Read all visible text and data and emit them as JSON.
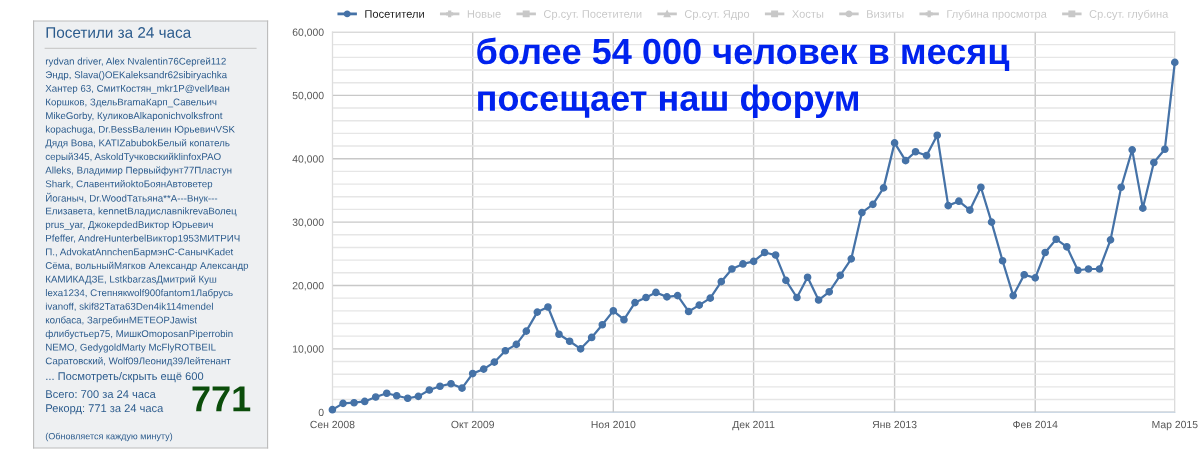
{
  "chart_data": [
    {
      "type": "other",
      "title": "Посетили за 24 часа",
      "annotations": [
        "rydvan driver, Alex Nvalentin76Сергей112",
        "Эндр, Slava()OEKaleksandr62sibiryachka",
        "Хантер 63, СмитКостян_mkr1P@velИван",
        "Коршков, ЗдельBramaКарп_Савельич",
        "MikeGorby, КуликовAlkaponichvolksfront",
        "kopachuga, Dr.BessВаленин ЮрьевичVSK",
        "Дядя Вова, KATIZabubokБелый копатель",
        "серый345, AskoldТучковскийklinfoxPAO",
        "Alleks, Владимир Первыйфунт77Пластун",
        "Shark, СлавентийoktoБоянАвтоветер",
        "Йоганыч, Dr.WoodТатьяна**А---Внук---",
        "Елизавета, kennetВладиславnikrevaВолец",
        "prus_yar, ДжокерdedВиктор Юрьевич",
        "Pfeffer, AndreHunterbelВиктор1953МИТРИЧ",
        "П., AdvokatAnnchenБармэнС-СанычKadet",
        "Сёма, вольныйМягков Александр Александр",
        "КАМИКАДЗЕ, LstkbarzasДмитрий Куш",
        "lexa1234, Степнякwolf900fantom1Лабрусь",
        "ivanoff, skif82Тата63Den4ik114mendel",
        "колбаса, ЗагребинMETEOPJawist",
        "флибустьер75, МишкOmoposanPiperrobin",
        "NEMO, GedygoldMarty McFlyROTBEIL",
        "Саратовский, Wolf09Леонид39Лейтенант",
        "... Посмотреть/скрыть ещё 600",
        "Всего: 700 за 24 часа",
        "Рекорд: 771 за 24 часа",
        "771",
        "(Обновляется каждую минуту)"
      ]
    },
    {
      "type": "line",
      "x": [
        "2008-09",
        "2008-10",
        "2008-11",
        "2008-12",
        "2009-01",
        "2009-02",
        "2009-03",
        "2009-04",
        "2009-05",
        "2009-06",
        "2009-07",
        "2009-08",
        "2009-09",
        "2009-10",
        "2009-11",
        "2009-12",
        "2010-01",
        "2010-02",
        "2010-03",
        "2010-04",
        "2010-05",
        "2010-06",
        "2010-07",
        "2010-08",
        "2010-09",
        "2010-10",
        "2010-11",
        "2010-12",
        "2011-01",
        "2011-02",
        "2011-03",
        "2011-04",
        "2011-05",
        "2011-06",
        "2011-07",
        "2011-08",
        "2011-09",
        "2011-10",
        "2011-11",
        "2011-12",
        "2012-01",
        "2012-02",
        "2012-03",
        "2012-04",
        "2012-05",
        "2012-06",
        "2012-07",
        "2012-08",
        "2012-09",
        "2012-10",
        "2012-11",
        "2012-12",
        "2013-01",
        "2013-02",
        "2013-03",
        "2013-04",
        "2013-05",
        "2013-06",
        "2013-07",
        "2013-08",
        "2013-09",
        "2013-10",
        "2013-11",
        "2013-12",
        "2014-01",
        "2014-02",
        "2014-03",
        "2014-04",
        "2014-05",
        "2014-06",
        "2014-07",
        "2014-08",
        "2014-09",
        "2014-10",
        "2014-11",
        "2014-12",
        "2015-01",
        "2015-02",
        "2015-03"
      ],
      "series": [
        {
          "name": "Посетители",
          "color": "#4572a7",
          "marker": "circle",
          "values": [
            400,
            1400,
            1500,
            1700,
            2400,
            3000,
            2600,
            2200,
            2500,
            3500,
            4100,
            4500,
            3800,
            6100,
            6800,
            7900,
            9700,
            10700,
            12800,
            15800,
            16600,
            12300,
            11200,
            10000,
            11800,
            13800,
            16000,
            14600,
            17300,
            18100,
            18900,
            18200,
            18400,
            15900,
            16900,
            18000,
            20600,
            22600,
            23400,
            23800,
            25200,
            24800,
            20800,
            18100,
            21300,
            17700,
            19000,
            21600,
            24200,
            31500,
            32800,
            35400,
            42500,
            39700,
            41100,
            40500,
            43700,
            32600,
            33300,
            31900,
            35500,
            30000,
            23900,
            18400,
            21700,
            21200,
            25200,
            27300,
            26100,
            22400,
            22600,
            22600,
            27200,
            35500,
            41400,
            32200,
            39400,
            41500,
            55200
          ]
        },
        {
          "name": "Новые",
          "color": "#c8c8c8",
          "marker": "cross",
          "values": [
            null,
            null,
            null,
            null,
            null,
            null,
            null,
            null,
            null,
            null,
            null,
            null,
            null,
            null,
            null,
            null,
            null,
            null,
            null,
            null,
            null,
            null,
            null,
            null,
            null,
            null,
            null,
            null,
            null,
            null,
            null,
            null,
            null,
            null,
            null,
            null,
            null,
            null,
            null,
            null,
            null,
            null,
            null,
            null,
            null,
            null,
            null,
            null,
            null,
            null,
            null,
            null,
            null,
            null,
            null,
            null,
            null,
            null,
            null,
            null,
            null,
            null,
            null,
            null,
            null,
            null,
            null,
            null,
            null,
            null,
            null,
            null,
            null,
            null,
            null,
            null,
            null,
            null,
            null
          ]
        },
        {
          "name": "Ср.сут. Посетители",
          "color": "#c8c8c8",
          "marker": "square",
          "values": [
            null,
            null,
            null,
            null,
            null,
            null,
            null,
            null,
            null,
            null,
            null,
            null,
            null,
            null,
            null,
            null,
            null,
            null,
            null,
            null,
            null,
            null,
            null,
            null,
            null,
            null,
            null,
            null,
            null,
            null,
            null,
            null,
            null,
            null,
            null,
            null,
            null,
            null,
            null,
            null,
            null,
            null,
            null,
            null,
            null,
            null,
            null,
            null,
            null,
            null,
            null,
            null,
            null,
            null,
            null,
            null,
            null,
            null,
            null,
            null,
            null,
            null,
            null,
            null,
            null,
            null,
            null,
            null,
            null,
            null,
            null,
            null,
            null,
            null,
            null,
            null,
            null,
            null,
            null
          ]
        },
        {
          "name": "Ср.сут. Ядро",
          "color": "#c8c8c8",
          "marker": "triangle",
          "values": [
            null,
            null,
            null,
            null,
            null,
            null,
            null,
            null,
            null,
            null,
            null,
            null,
            null,
            null,
            null,
            null,
            null,
            null,
            null,
            null,
            null,
            null,
            null,
            null,
            null,
            null,
            null,
            null,
            null,
            null,
            null,
            null,
            null,
            null,
            null,
            null,
            null,
            null,
            null,
            null,
            null,
            null,
            null,
            null,
            null,
            null,
            null,
            null,
            null,
            null,
            null,
            null,
            null,
            null,
            null,
            null,
            null,
            null,
            null,
            null,
            null,
            null,
            null,
            null,
            null,
            null,
            null,
            null,
            null,
            null,
            null,
            null,
            null,
            null,
            null,
            null,
            null,
            null,
            null
          ]
        },
        {
          "name": "Хосты",
          "color": "#c8c8c8",
          "marker": "square",
          "values": [
            null,
            null,
            null,
            null,
            null,
            null,
            null,
            null,
            null,
            null,
            null,
            null,
            null,
            null,
            null,
            null,
            null,
            null,
            null,
            null,
            null,
            null,
            null,
            null,
            null,
            null,
            null,
            null,
            null,
            null,
            null,
            null,
            null,
            null,
            null,
            null,
            null,
            null,
            null,
            null,
            null,
            null,
            null,
            null,
            null,
            null,
            null,
            null,
            null,
            null,
            null,
            null,
            null,
            null,
            null,
            null,
            null,
            null,
            null,
            null,
            null,
            null,
            null,
            null,
            null,
            null,
            null,
            null,
            null,
            null,
            null,
            null,
            null,
            null,
            null,
            null,
            null,
            null,
            null
          ]
        },
        {
          "name": "Визиты",
          "color": "#c8c8c8",
          "marker": "circle",
          "values": [
            null,
            null,
            null,
            null,
            null,
            null,
            null,
            null,
            null,
            null,
            null,
            null,
            null,
            null,
            null,
            null,
            null,
            null,
            null,
            null,
            null,
            null,
            null,
            null,
            null,
            null,
            null,
            null,
            null,
            null,
            null,
            null,
            null,
            null,
            null,
            null,
            null,
            null,
            null,
            null,
            null,
            null,
            null,
            null,
            null,
            null,
            null,
            null,
            null,
            null,
            null,
            null,
            null,
            null,
            null,
            null,
            null,
            null,
            null,
            null,
            null,
            null,
            null,
            null,
            null,
            null,
            null,
            null,
            null,
            null,
            null,
            null,
            null,
            null,
            null,
            null,
            null,
            null,
            null
          ]
        },
        {
          "name": "Глубина просмотра",
          "color": "#c8c8c8",
          "marker": "cross",
          "values": [
            null,
            null,
            null,
            null,
            null,
            null,
            null,
            null,
            null,
            null,
            null,
            null,
            null,
            null,
            null,
            null,
            null,
            null,
            null,
            null,
            null,
            null,
            null,
            null,
            null,
            null,
            null,
            null,
            null,
            null,
            null,
            null,
            null,
            null,
            null,
            null,
            null,
            null,
            null,
            null,
            null,
            null,
            null,
            null,
            null,
            null,
            null,
            null,
            null,
            null,
            null,
            null,
            null,
            null,
            null,
            null,
            null,
            null,
            null,
            null,
            null,
            null,
            null,
            null,
            null,
            null,
            null,
            null,
            null,
            null,
            null,
            null,
            null,
            null,
            null,
            null,
            null,
            null,
            null
          ]
        },
        {
          "name": "Ср.сут. глубина",
          "color": "#c8c8c8",
          "marker": "square",
          "values": [
            null,
            null,
            null,
            null,
            null,
            null,
            null,
            null,
            null,
            null,
            null,
            null,
            null,
            null,
            null,
            null,
            null,
            null,
            null,
            null,
            null,
            null,
            null,
            null,
            null,
            null,
            null,
            null,
            null,
            null,
            null,
            null,
            null,
            null,
            null,
            null,
            null,
            null,
            null,
            null,
            null,
            null,
            null,
            null,
            null,
            null,
            null,
            null,
            null,
            null,
            null,
            null,
            null,
            null,
            null,
            null,
            null,
            null,
            null,
            null,
            null,
            null,
            null,
            null,
            null,
            null,
            null,
            null,
            null,
            null,
            null,
            null,
            null,
            null,
            null,
            null,
            null,
            null,
            null
          ]
        }
      ],
      "xlim": [
        "2008-09",
        "2015-03"
      ],
      "xticks": [
        {
          "value": "2008-09",
          "label": "Сен 2008"
        },
        {
          "value": "2009-10",
          "label": "Окт 2009"
        },
        {
          "value": "2010-11",
          "label": "Ноя 2010"
        },
        {
          "value": "2011-12",
          "label": "Дек 2011"
        },
        {
          "value": "2013-01",
          "label": "Янв 2013"
        },
        {
          "value": "2014-02",
          "label": "Фев 2014"
        },
        {
          "value": "2015-03",
          "label": "Мар 2015"
        }
      ],
      "ylim": [
        0,
        60000
      ],
      "yticks": [
        {
          "value": 0,
          "label": "0"
        },
        {
          "value": 10000,
          "label": "10,000"
        },
        {
          "value": 20000,
          "label": "20,000"
        },
        {
          "value": 30000,
          "label": "30,000"
        },
        {
          "value": 40000,
          "label": "40,000"
        },
        {
          "value": 50000,
          "label": "50,000"
        },
        {
          "value": 60000,
          "label": "60,000"
        }
      ],
      "grid": true,
      "legend": "top",
      "line_style": "solid",
      "annotations": [
        "более 54 000 человек в месяц\nпосещает наш форум"
      ]
    }
  ]
}
